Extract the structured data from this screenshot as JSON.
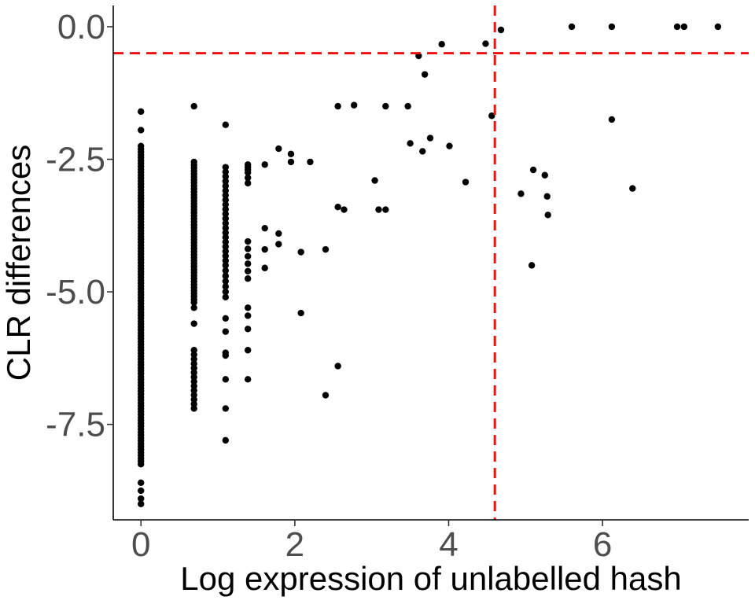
{
  "chart_data": {
    "type": "scatter",
    "xlabel": "Log expression of unlabelled hash",
    "ylabel": "CLR differences",
    "xlim": [
      -0.36,
      7.9
    ],
    "ylim": [
      -9.3,
      0.4
    ],
    "x_ticks": [
      0,
      2,
      4,
      6
    ],
    "x_tick_labels": [
      "0",
      "2",
      "4",
      "6"
    ],
    "y_ticks": [
      0,
      -2.5,
      -5,
      -7.5
    ],
    "y_tick_labels": [
      "0.0",
      "-2.5",
      "-5.0",
      "-7.5"
    ],
    "grid": false,
    "legend": "none",
    "point_color": "#000000",
    "reference_lines": {
      "vertical_x": 4.6,
      "horizontal_y": -0.5,
      "color": "#ee1111",
      "style": "dashed"
    },
    "columns": [
      {
        "x": 0,
        "y_range": [
          -2.25,
          -8.25
        ],
        "count": 110
      },
      {
        "x": 0.69,
        "y_range": [
          -2.55,
          -5.2
        ],
        "count": 48
      },
      {
        "x": 0.69,
        "y_range": [
          -6.1,
          -7.2
        ],
        "count": 14
      },
      {
        "x": 1.1,
        "y_range": [
          -2.65,
          -4.5
        ],
        "count": 22
      },
      {
        "x": 1.1,
        "y_range": [
          -4.6,
          -5.1
        ],
        "count": 6
      },
      {
        "x": 1.39,
        "y_range": [
          -2.65,
          -2.95
        ],
        "count": 4
      },
      {
        "x": 1.39,
        "y_range": [
          -4.05,
          -4.75
        ],
        "count": 6
      }
    ],
    "points": [
      [
        0,
        -1.6
      ],
      [
        0,
        -1.95
      ],
      [
        0,
        -8.6
      ],
      [
        0,
        -8.75
      ],
      [
        0,
        -8.9
      ],
      [
        0,
        -9.0
      ],
      [
        0.69,
        -1.5
      ],
      [
        0.69,
        -5.3
      ],
      [
        0.69,
        -5.6
      ],
      [
        1.1,
        -1.85
      ],
      [
        1.1,
        -5.5
      ],
      [
        1.1,
        -5.75
      ],
      [
        1.1,
        -6.15
      ],
      [
        1.1,
        -6.2
      ],
      [
        1.1,
        -6.65
      ],
      [
        1.1,
        -7.2
      ],
      [
        1.1,
        -7.8
      ],
      [
        1.39,
        -2.6
      ],
      [
        1.39,
        -2.7
      ],
      [
        1.39,
        -5.3
      ],
      [
        1.39,
        -5.45
      ],
      [
        1.39,
        -5.7
      ],
      [
        1.39,
        -6.1
      ],
      [
        1.39,
        -6.65
      ],
      [
        1.61,
        -2.6
      ],
      [
        1.61,
        -3.8
      ],
      [
        1.61,
        -4.2
      ],
      [
        1.61,
        -4.55
      ],
      [
        1.79,
        -2.3
      ],
      [
        1.79,
        -3.9
      ],
      [
        1.79,
        -4.1
      ],
      [
        1.95,
        -2.4
      ],
      [
        1.95,
        -2.55
      ],
      [
        2.08,
        -4.25
      ],
      [
        2.08,
        -5.4
      ],
      [
        2.2,
        -2.55
      ],
      [
        2.4,
        -4.2
      ],
      [
        2.4,
        -6.95
      ],
      [
        2.56,
        -1.5
      ],
      [
        2.56,
        -3.4
      ],
      [
        2.56,
        -6.4
      ],
      [
        2.64,
        -3.45
      ],
      [
        2.77,
        -1.48
      ],
      [
        3.04,
        -2.9
      ],
      [
        3.09,
        -3.45
      ],
      [
        3.18,
        -1.5
      ],
      [
        3.18,
        -3.45
      ],
      [
        3.47,
        -1.5
      ],
      [
        3.5,
        -2.2
      ],
      [
        3.61,
        -0.55
      ],
      [
        3.66,
        -2.35
      ],
      [
        3.69,
        -0.9
      ],
      [
        3.76,
        -2.1
      ],
      [
        3.91,
        -0.33
      ],
      [
        4.01,
        -2.25
      ],
      [
        4.22,
        -2.93
      ],
      [
        4.48,
        -0.32
      ],
      [
        4.56,
        -1.68
      ],
      [
        4.68,
        -0.06
      ],
      [
        4.94,
        -3.15
      ],
      [
        5.08,
        -4.5
      ],
      [
        5.1,
        -2.7
      ],
      [
        5.25,
        -2.8
      ],
      [
        5.28,
        -3.2
      ],
      [
        5.29,
        -3.55
      ],
      [
        5.6,
        0.0
      ],
      [
        6.12,
        0.0
      ],
      [
        6.12,
        -1.75
      ],
      [
        6.39,
        -3.05
      ],
      [
        6.97,
        0.0
      ],
      [
        7.06,
        0.0
      ],
      [
        7.5,
        0.0
      ]
    ]
  }
}
